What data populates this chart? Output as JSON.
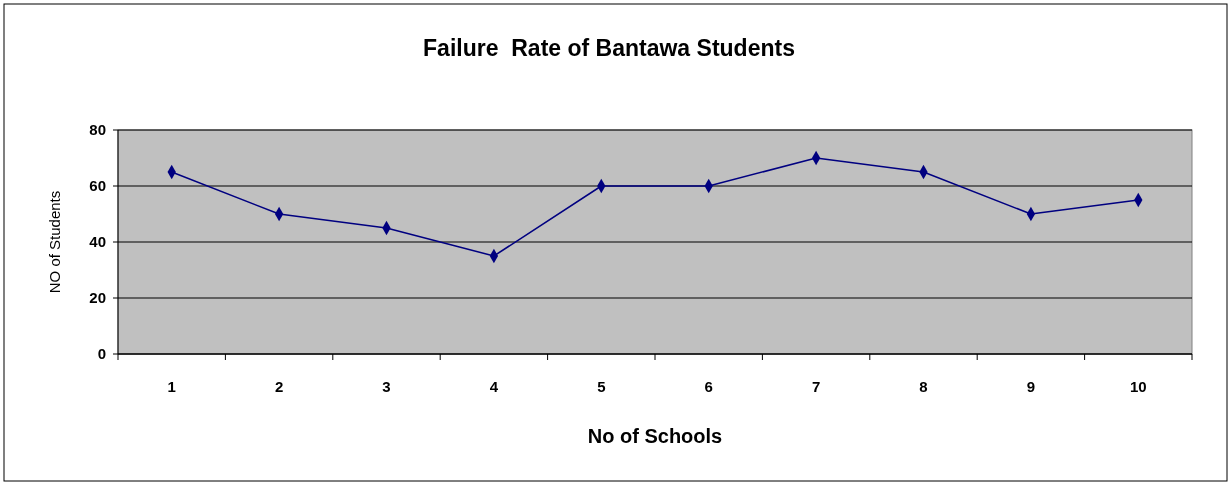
{
  "chart_data": {
    "type": "line",
    "title": "Failure  Rate of Bantawa Students",
    "xlabel": "No of Schools",
    "ylabel": "NO of Students",
    "categories": [
      "1",
      "2",
      "3",
      "4",
      "5",
      "6",
      "7",
      "8",
      "9",
      "10"
    ],
    "series": [
      {
        "color": "#000080",
        "values": [
          65,
          50,
          45,
          35,
          60,
          60,
          70,
          65,
          50,
          55
        ]
      }
    ],
    "ylim": [
      0,
      80
    ],
    "yticks": [
      0,
      20,
      40,
      60,
      80
    ],
    "grid": "y",
    "marker": "diamond"
  }
}
